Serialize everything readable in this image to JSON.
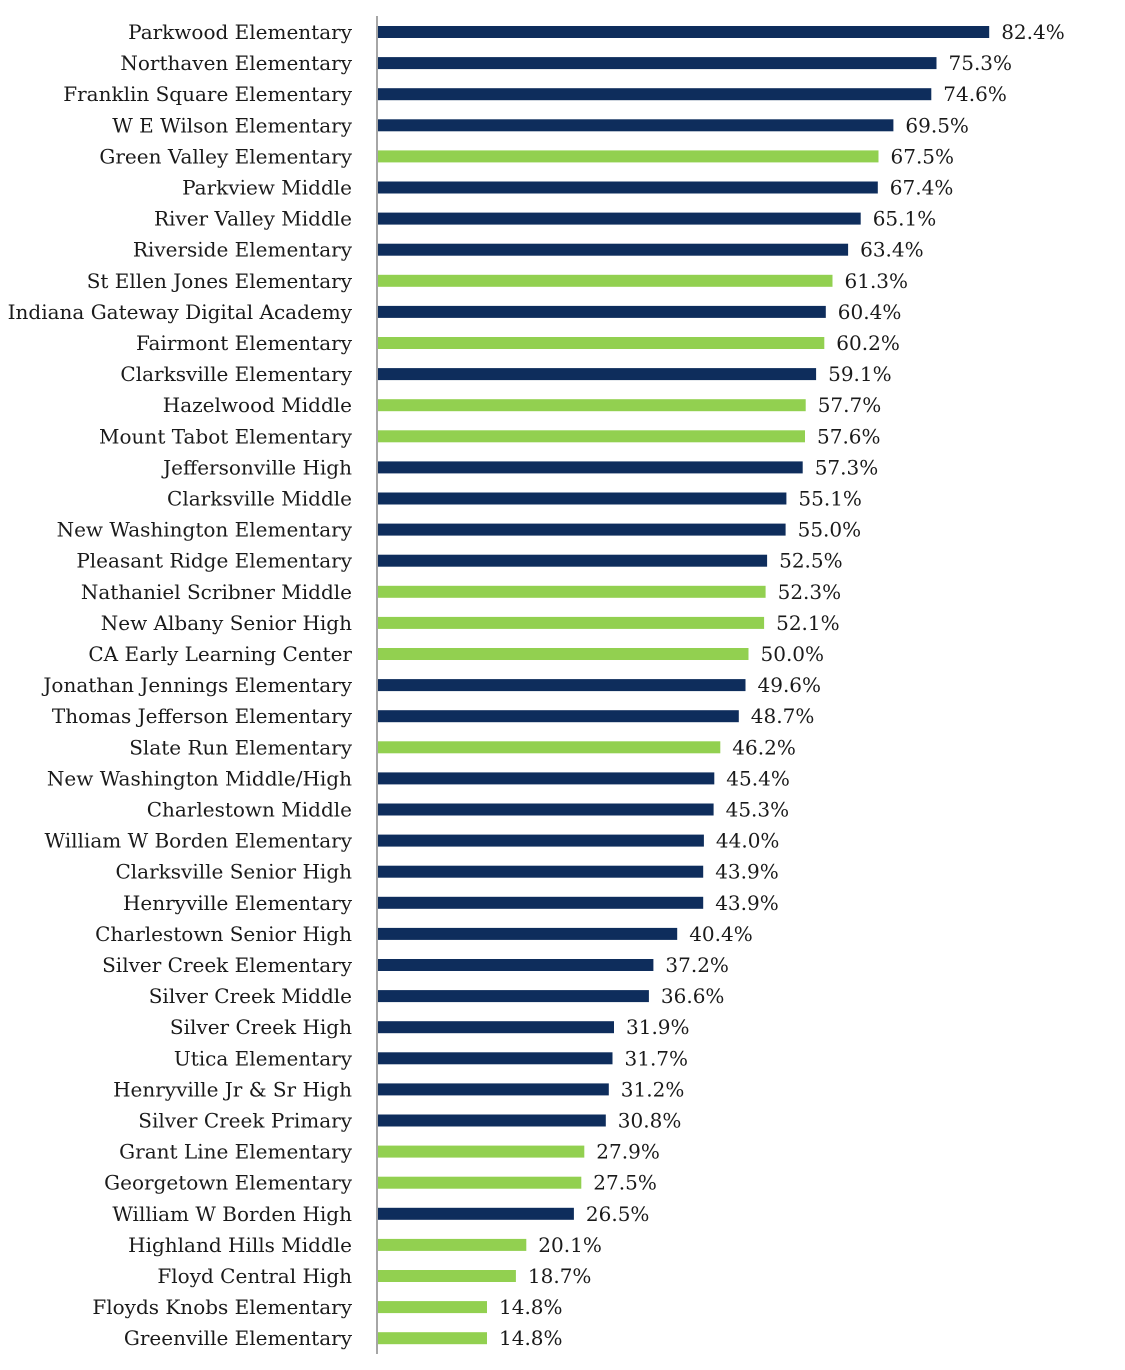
{
  "colors": {
    "dark": "#0e2d5c",
    "green": "#92d050",
    "axis": "#a6a6a6",
    "text": "#1a1a1a"
  },
  "chart_data": {
    "type": "bar",
    "orientation": "horizontal",
    "title": "",
    "xlabel": "",
    "ylabel": "",
    "xlim": [
      0,
      100
    ],
    "value_format": "percent-1dp",
    "grid": false,
    "categories": [
      "Parkwood Elementary",
      "Northaven Elementary",
      "Franklin Square Elementary",
      "W E Wilson Elementary",
      "Green Valley Elementary",
      "Parkview Middle",
      "River Valley Middle",
      "Riverside Elementary",
      "St Ellen Jones Elementary",
      "Indiana Gateway Digital Academy",
      "Fairmont Elementary",
      "Clarksville Elementary",
      "Hazelwood Middle",
      "Mount Tabot Elementary",
      "Jeffersonville High",
      "Clarksville Middle",
      "New Washington Elementary",
      "Pleasant Ridge Elementary",
      "Nathaniel Scribner Middle",
      "New Albany Senior High",
      "CA Early Learning Center",
      "Jonathan Jennings Elementary",
      "Thomas Jefferson Elementary",
      "Slate Run Elementary",
      "New Washington Middle/High",
      "Charlestown Middle",
      "William W Borden Elementary",
      "Clarksville Senior High",
      "Henryville Elementary",
      "Charlestown Senior High",
      "Silver Creek Elementary",
      "Silver Creek Middle",
      "Silver Creek High",
      "Utica Elementary",
      "Henryville Jr & Sr High",
      "Silver Creek Primary",
      "Grant Line Elementary",
      "Georgetown Elementary",
      "William W Borden High",
      "Highland Hills Middle",
      "Floyd Central High",
      "Floyds Knobs Elementary",
      "Greenville Elementary"
    ],
    "values": [
      82.4,
      75.3,
      74.6,
      69.5,
      67.5,
      67.4,
      65.1,
      63.4,
      61.3,
      60.4,
      60.2,
      59.1,
      57.7,
      57.6,
      57.3,
      55.1,
      55.0,
      52.5,
      52.3,
      52.1,
      50.0,
      49.6,
      48.7,
      46.2,
      45.4,
      45.3,
      44.0,
      43.9,
      43.9,
      40.4,
      37.2,
      36.6,
      31.9,
      31.7,
      31.2,
      30.8,
      27.9,
      27.5,
      26.5,
      20.1,
      18.7,
      14.8,
      14.8
    ],
    "groups": [
      "dark",
      "dark",
      "dark",
      "dark",
      "green",
      "dark",
      "dark",
      "dark",
      "green",
      "dark",
      "green",
      "dark",
      "green",
      "green",
      "dark",
      "dark",
      "dark",
      "dark",
      "green",
      "green",
      "green",
      "dark",
      "dark",
      "green",
      "dark",
      "dark",
      "dark",
      "dark",
      "dark",
      "dark",
      "dark",
      "dark",
      "dark",
      "dark",
      "dark",
      "dark",
      "green",
      "green",
      "dark",
      "green",
      "green",
      "green",
      "green"
    ]
  }
}
